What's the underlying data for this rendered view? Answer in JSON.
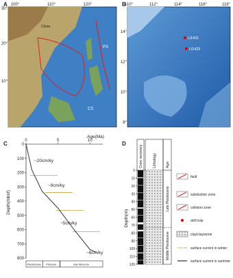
{
  "panel_a": {
    "letter": "A",
    "lon_ticks": [
      "100°",
      "110°",
      "120°"
    ],
    "lat_ticks": [
      "30°",
      "20°",
      "10°"
    ],
    "places": [
      "China",
      "PS",
      "CS"
    ]
  },
  "panel_b": {
    "letter": "B",
    "lon_ticks": [
      "110°",
      "112°",
      "114°",
      "116°",
      "118°"
    ],
    "lat_ticks": [
      "14°",
      "12°",
      "10°",
      "8°"
    ],
    "sites": [
      "U1431",
      "U1433"
    ]
  },
  "panel_c": {
    "letter": "C",
    "type": "line",
    "xlabel": "Age(Ma)",
    "ylabel": "Depth(mbsf)",
    "x": [
      0,
      0.9,
      2.5,
      5,
      7.5,
      10,
      11
    ],
    "values": [
      0,
      180,
      330,
      450,
      600,
      740,
      760
    ],
    "color": "#333333",
    "xlim": [
      0,
      12
    ],
    "ylim": [
      0,
      800
    ],
    "xticks": [
      0,
      5,
      10
    ],
    "yticks": [
      0,
      100,
      200,
      300,
      400,
      500,
      600,
      700,
      800
    ],
    "rate_boundaries": [
      220,
      340,
      465,
      615
    ],
    "rates": [
      "~20cm/ky",
      "~9cm/ky",
      "~5cm/ky",
      "~6cm/ky"
    ],
    "epochs": [
      "Pleistocene",
      "Pliocene",
      "late Miocene"
    ],
    "epoch_bounds": [
      0,
      2.6,
      5.3,
      12
    ]
  },
  "panel_d": {
    "letter": "D",
    "ylabel": "Depth(m)",
    "columns": [
      "Core recovery",
      "Lithology",
      "Age"
    ],
    "ylim": [
      0,
      120
    ],
    "yticks": [
      0,
      10,
      20,
      30,
      40,
      50,
      60,
      70,
      80,
      90,
      100,
      110,
      120
    ],
    "cores": [
      [
        0,
        9
      ],
      [
        10,
        19
      ],
      [
        19.5,
        28.5
      ],
      [
        29,
        38
      ],
      [
        38.5,
        47.5
      ],
      [
        49,
        57
      ],
      [
        57.5,
        66.5
      ],
      [
        69,
        76
      ],
      [
        78,
        86
      ],
      [
        86.5,
        95.5
      ],
      [
        96,
        105
      ],
      [
        106,
        114.5
      ],
      [
        115,
        120
      ]
    ],
    "age_boundary": 73,
    "ages": [
      "Late Pleistocene",
      "Middle Pleistocene"
    ],
    "legend": [
      "fault",
      "subduction zone",
      "collision zone",
      "drill hole",
      "clay/claystone",
      "surface current in winter",
      "surface current in summer"
    ]
  }
}
